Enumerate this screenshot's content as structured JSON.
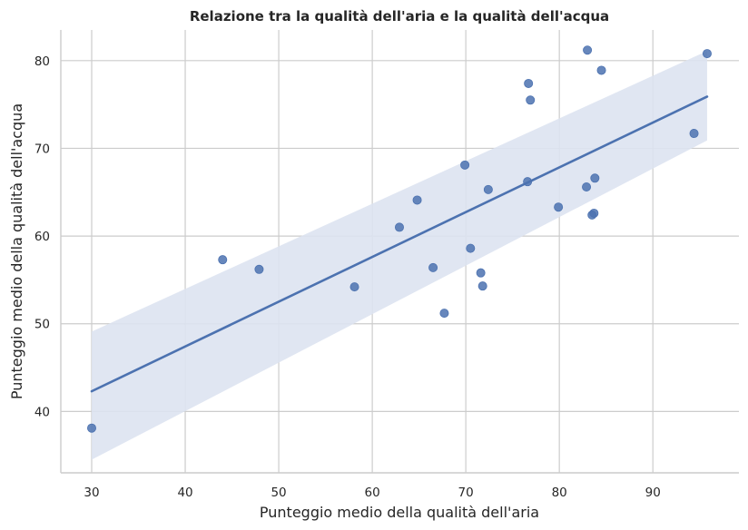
{
  "chart_data": {
    "type": "scatter",
    "title": "Relazione tra la qualità dell'aria e la qualità dell'acqua",
    "xlabel": "Punteggio medio della qualità dell'aria",
    "ylabel": "Punteggio medio della qualità dell'acqua",
    "xlim": [
      26.7,
      99.2
    ],
    "ylim": [
      33.0,
      83.5
    ],
    "x_ticks": [
      30,
      40,
      50,
      60,
      70,
      80,
      90
    ],
    "y_ticks": [
      40,
      50,
      60,
      70,
      80
    ],
    "grid": true,
    "points": [
      {
        "x": 30.0,
        "y": 38.1
      },
      {
        "x": 44.0,
        "y": 57.3
      },
      {
        "x": 47.9,
        "y": 56.2
      },
      {
        "x": 58.1,
        "y": 54.2
      },
      {
        "x": 62.9,
        "y": 61.0
      },
      {
        "x": 64.8,
        "y": 64.1
      },
      {
        "x": 66.5,
        "y": 56.4
      },
      {
        "x": 67.7,
        "y": 51.2
      },
      {
        "x": 69.9,
        "y": 68.1
      },
      {
        "x": 70.5,
        "y": 58.6
      },
      {
        "x": 71.6,
        "y": 55.8
      },
      {
        "x": 71.8,
        "y": 54.3
      },
      {
        "x": 72.4,
        "y": 65.3
      },
      {
        "x": 76.6,
        "y": 66.2
      },
      {
        "x": 76.7,
        "y": 77.4
      },
      {
        "x": 76.9,
        "y": 75.5
      },
      {
        "x": 79.9,
        "y": 63.3
      },
      {
        "x": 82.9,
        "y": 65.6
      },
      {
        "x": 83.0,
        "y": 81.2
      },
      {
        "x": 83.5,
        "y": 62.4
      },
      {
        "x": 83.7,
        "y": 62.6
      },
      {
        "x": 83.8,
        "y": 66.6
      },
      {
        "x": 84.5,
        "y": 78.9
      },
      {
        "x": 94.4,
        "y": 71.7
      },
      {
        "x": 95.8,
        "y": 80.8
      }
    ],
    "regression": {
      "x": [
        30.0,
        95.8
      ],
      "y": [
        42.3,
        75.9
      ],
      "ci_lower": [
        34.5,
        70.9
      ],
      "ci_upper": [
        49.1,
        81.1
      ]
    },
    "colors": {
      "points": "#4c72b0",
      "line": "#4c72b0",
      "band": "#dde3f1",
      "grid": "#cccccc",
      "axis": "#cccccc"
    }
  }
}
